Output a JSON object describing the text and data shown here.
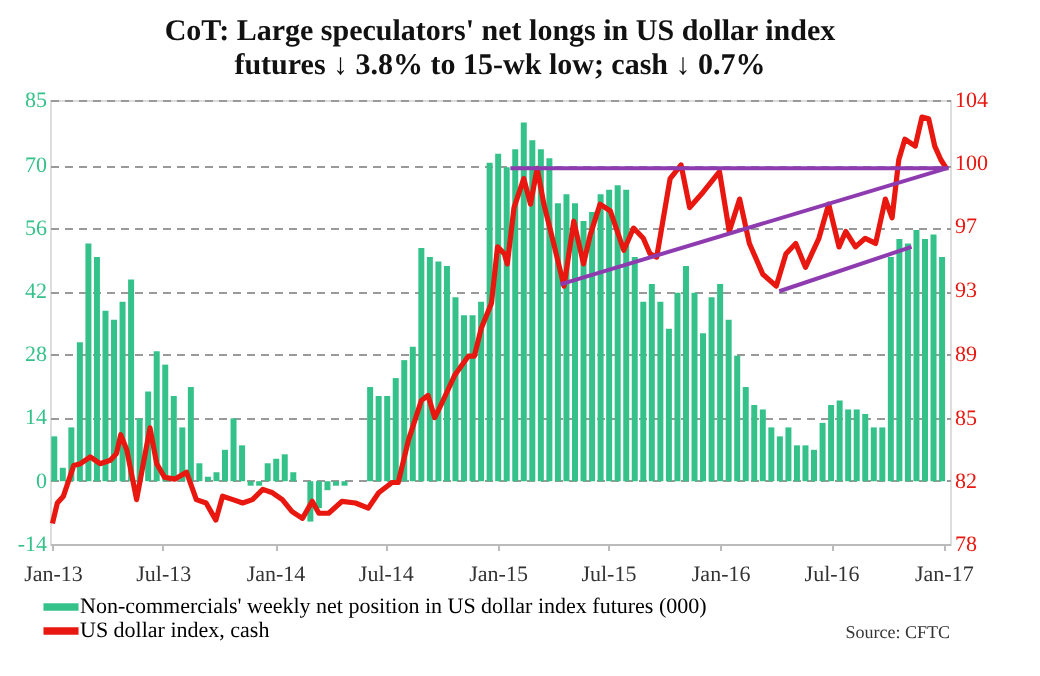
{
  "chart_data": {
    "type": "bar",
    "title": "CoT: Large speculators' net longs in US dollar index futures ↓ 3.8% to 15-wk low; cash ↓ 0.7%",
    "xlim": [
      "2012-12-28",
      "2017-01-12"
    ],
    "xticks": [
      {
        "value": "2013-01-01",
        "label": "Jan-13"
      },
      {
        "value": "2013-07-01",
        "label": "Jul-13"
      },
      {
        "value": "2014-01-01",
        "label": "Jan-14"
      },
      {
        "value": "2014-07-01",
        "label": "Jul-14"
      },
      {
        "value": "2015-01-01",
        "label": "Jan-15"
      },
      {
        "value": "2015-07-01",
        "label": "Jul-15"
      },
      {
        "value": "2016-01-01",
        "label": "Jan-16"
      },
      {
        "value": "2016-07-01",
        "label": "Jul-16"
      },
      {
        "value": "2017-01-01",
        "label": "Jan-17"
      }
    ],
    "ylim": [
      -14,
      85
    ],
    "yticks": [
      -14,
      {
        "value": 0.1,
        "label": "0"
      },
      {
        "value": 14.3,
        "label": "14"
      },
      {
        "value": 28.4,
        "label": "28"
      },
      {
        "value": 42.4,
        "label": "42"
      },
      {
        "value": 56.5,
        "label": "56"
      },
      {
        "value": 70.5,
        "label": "70"
      },
      85
    ],
    "y2lim": [
      78,
      104
    ],
    "y2ticks": [
      78,
      {
        "value": 81.7,
        "label": "82"
      },
      {
        "value": 85.4,
        "label": "85"
      },
      {
        "value": 89.1,
        "label": "89"
      },
      {
        "value": 92.9,
        "label": "93"
      },
      {
        "value": 96.6,
        "label": "97"
      },
      {
        "value": 100.3,
        "label": "100"
      },
      104
    ],
    "grid": "y",
    "legend": "bottom",
    "annotations": [
      "Source: CFTC"
    ],
    "series": [
      {
        "name": "Non-commercials' weekly net position in US dollar index futures (000)",
        "color": "#35c28a",
        "x": [
          "2013-01-04",
          "2013-01-18",
          "2013-02-01",
          "2013-02-15",
          "2013-03-01",
          "2013-03-15",
          "2013-03-29",
          "2013-04-12",
          "2013-04-26",
          "2013-05-10",
          "2013-05-24",
          "2013-06-07",
          "2013-06-21",
          "2013-07-05",
          "2013-07-19",
          "2013-08-02",
          "2013-08-16",
          "2013-08-30",
          "2013-09-13",
          "2013-09-27",
          "2013-10-11",
          "2013-10-25",
          "2013-11-08",
          "2013-11-22",
          "2013-12-06",
          "2013-12-20",
          "2014-01-03",
          "2014-01-17",
          "2014-01-31",
          "2014-02-14",
          "2014-02-28",
          "2014-03-14",
          "2014-03-28",
          "2014-04-11",
          "2014-04-25",
          "2014-05-09",
          "2014-05-23",
          "2014-06-06",
          "2014-06-20",
          "2014-07-04",
          "2014-07-18",
          "2014-08-01",
          "2014-08-15",
          "2014-08-29",
          "2014-09-12",
          "2014-09-26",
          "2014-10-10",
          "2014-10-24",
          "2014-11-07",
          "2014-11-21",
          "2014-12-05",
          "2014-12-19",
          "2015-01-02",
          "2015-01-16",
          "2015-01-30",
          "2015-02-13",
          "2015-02-27",
          "2015-03-13",
          "2015-03-27",
          "2015-04-10",
          "2015-04-24",
          "2015-05-08",
          "2015-05-22",
          "2015-06-05",
          "2015-06-19",
          "2015-07-03",
          "2015-07-17",
          "2015-07-31",
          "2015-08-14",
          "2015-08-28",
          "2015-09-11",
          "2015-09-25",
          "2015-10-09",
          "2015-10-23",
          "2015-11-06",
          "2015-11-20",
          "2015-12-04",
          "2015-12-18",
          "2016-01-01",
          "2016-01-15",
          "2016-01-29",
          "2016-02-12",
          "2016-02-26",
          "2016-03-11",
          "2016-03-25",
          "2016-04-08",
          "2016-04-22",
          "2016-05-06",
          "2016-05-20",
          "2016-06-03",
          "2016-06-17",
          "2016-07-01",
          "2016-07-15",
          "2016-07-29",
          "2016-08-12",
          "2016-08-26",
          "2016-09-09",
          "2016-09-23",
          "2016-10-07",
          "2016-10-21",
          "2016-11-04",
          "2016-11-18",
          "2016-12-02",
          "2016-12-16",
          "2016-12-30"
        ],
        "values": [
          10,
          3,
          12,
          31,
          53,
          50,
          38,
          36,
          40,
          45,
          14,
          20,
          29,
          26,
          19,
          12,
          21,
          4,
          1,
          2,
          7,
          14,
          8,
          -1,
          -1,
          4,
          5,
          6,
          2,
          0,
          -9,
          -6,
          -2,
          -1,
          -1,
          0,
          0,
          21,
          19,
          19,
          23,
          27,
          30,
          52,
          50,
          49,
          48,
          41,
          37,
          37,
          40,
          71,
          73,
          70,
          74,
          80,
          76,
          74,
          72,
          62,
          64,
          62,
          58,
          60,
          64,
          65,
          66,
          65,
          50,
          40,
          44,
          40,
          34,
          42,
          48,
          42,
          33,
          41,
          44,
          36,
          28,
          21,
          17,
          16,
          12,
          10,
          12,
          8,
          8,
          7,
          13,
          17,
          18,
          16,
          16,
          15,
          12,
          12,
          50,
          54,
          53,
          56,
          54,
          55,
          50
        ]
      },
      {
        "name": "US dollar index, cash",
        "type": "line",
        "axis": "y2",
        "color": "#e8170f",
        "x": [
          "2013-01-01",
          "2013-01-09",
          "2013-01-19",
          "2013-02-05",
          "2013-02-16",
          "2013-03-04",
          "2013-03-20",
          "2013-04-06",
          "2013-04-16",
          "2013-04-23",
          "2013-05-03",
          "2013-05-19",
          "2013-05-30",
          "2013-06-10",
          "2013-06-21",
          "2013-07-04",
          "2013-07-21",
          "2013-08-09",
          "2013-08-25",
          "2013-09-10",
          "2013-09-26",
          "2013-10-07",
          "2013-10-24",
          "2013-11-09",
          "2013-11-25",
          "2013-12-12",
          "2013-12-28",
          "2014-01-13",
          "2014-01-29",
          "2014-02-15",
          "2014-03-03",
          "2014-03-14",
          "2014-03-30",
          "2014-04-21",
          "2014-05-13",
          "2014-06-03",
          "2014-06-20",
          "2014-07-12",
          "2014-07-22",
          "2014-08-08",
          "2014-08-29",
          "2014-09-09",
          "2014-09-20",
          "2014-10-01",
          "2014-10-23",
          "2014-11-14",
          "2014-11-24",
          "2014-12-05",
          "2014-12-22",
          "2015-01-01",
          "2015-01-12",
          "2015-01-17",
          "2015-01-28",
          "2015-02-13",
          "2015-02-24",
          "2015-03-07",
          "2015-03-18",
          "2015-04-03",
          "2015-04-20",
          "2015-05-06",
          "2015-05-22",
          "2015-06-02",
          "2015-06-18",
          "2015-07-05",
          "2015-07-27",
          "2015-08-12",
          "2015-08-28",
          "2015-09-08",
          "2015-09-19",
          "2015-10-11",
          "2015-10-29",
          "2015-11-12",
          "2015-12-04",
          "2015-12-31",
          "2016-01-16",
          "2016-02-02",
          "2016-02-18",
          "2016-03-11",
          "2016-04-02",
          "2016-04-18",
          "2016-05-04",
          "2016-05-20",
          "2016-06-11",
          "2016-06-27",
          "2016-07-14",
          "2016-07-25",
          "2016-08-10",
          "2016-08-26",
          "2016-09-12",
          "2016-09-28",
          "2016-10-09",
          "2016-10-20",
          "2016-10-30",
          "2016-11-16",
          "2016-11-27",
          "2016-12-08",
          "2016-12-18",
          "2016-12-28",
          "2017-01-06"
        ],
        "values": [
          79.2,
          80.4,
          80.8,
          82.6,
          82.7,
          83.1,
          82.7,
          82.9,
          83.3,
          84.4,
          83.5,
          80.6,
          82.7,
          84.8,
          82.7,
          81.9,
          81.8,
          82.2,
          80.6,
          80.4,
          79.4,
          80.8,
          80.6,
          80.4,
          80.6,
          81.2,
          81.0,
          80.6,
          79.9,
          79.5,
          80.5,
          79.8,
          79.8,
          80.5,
          80.4,
          80.1,
          81.0,
          81.6,
          81.6,
          84.1,
          86.4,
          86.7,
          85.4,
          86.2,
          87.9,
          89.0,
          89.0,
          90.6,
          92.1,
          95.4,
          95.0,
          94.4,
          97.7,
          99.4,
          97.9,
          100.0,
          97.9,
          95.6,
          93.1,
          96.9,
          94.4,
          96.1,
          97.9,
          97.5,
          95.2,
          96.5,
          95.9,
          95.0,
          94.8,
          99.4,
          100.2,
          97.7,
          98.6,
          99.8,
          96.3,
          98.2,
          95.6,
          93.8,
          93.1,
          95.0,
          95.6,
          94.2,
          95.9,
          97.9,
          95.4,
          96.3,
          95.4,
          95.9,
          95.6,
          98.2,
          97.1,
          100.5,
          101.7,
          101.3,
          103.0,
          102.9,
          101.3,
          100.5,
          100.0
        ]
      },
      {
        "type": "line",
        "axis": "y2",
        "color": "#8e3bb0",
        "x": [
          "2015-01-22",
          "2017-01-10"
        ],
        "values": [
          100.0,
          100.0
        ]
      },
      {
        "type": "line",
        "axis": "y2",
        "color": "#8e3bb0",
        "x": [
          "2015-04-14",
          "2017-01-06"
        ],
        "values": [
          93.2,
          100.0
        ]
      },
      {
        "type": "line",
        "axis": "y2",
        "color": "#8e3bb0",
        "x": [
          "2016-04-07",
          "2016-11-10"
        ],
        "values": [
          92.8,
          95.4
        ]
      }
    ]
  }
}
